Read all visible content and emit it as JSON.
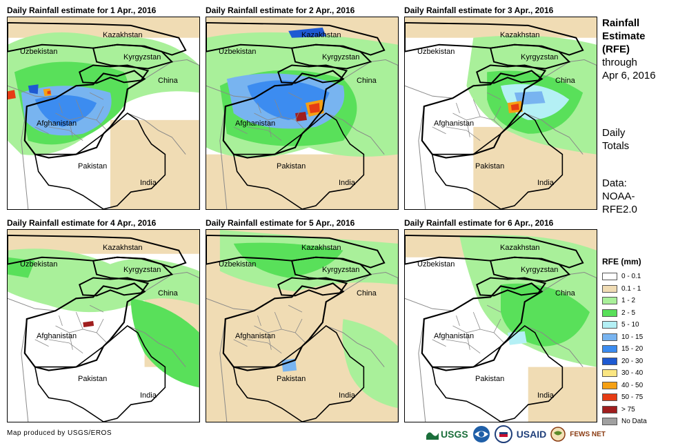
{
  "panels": [
    {
      "title": "Daily Rainfall estimate for 1 Apr., 2016",
      "rain": "day1"
    },
    {
      "title": "Daily Rainfall estimate for 2 Apr., 2016",
      "rain": "day2"
    },
    {
      "title": "Daily Rainfall estimate for 3 Apr., 2016",
      "rain": "day3"
    },
    {
      "title": "Daily Rainfall estimate for 4 Apr., 2016",
      "rain": "day4"
    },
    {
      "title": "Daily Rainfall estimate for 5 Apr., 2016",
      "rain": "day5"
    },
    {
      "title": "Daily Rainfall estimate for 6 Apr., 2016",
      "rain": "day6"
    }
  ],
  "map_labels": {
    "kazakhstan": "Kazakhstan",
    "kyrgyzstan": "Kyrgyzstan",
    "uzbekistan": "Uzbekistan",
    "china": "China",
    "afghanistan": "Afghanistan",
    "pakistan": "Pakistan",
    "india": "India"
  },
  "side": {
    "title_lines": [
      "Rainfall",
      "Estimate",
      "(RFE)"
    ],
    "through": "through",
    "date": "Apr 6, 2016",
    "totals_lines": [
      "Daily",
      "Totals"
    ],
    "data_lines": [
      "Data:",
      "NOAA-",
      "RFE2.0"
    ]
  },
  "legend": {
    "title": "RFE (mm)",
    "items": [
      {
        "label": "0 - 0.1",
        "color": "#ffffff"
      },
      {
        "label": "0.1 - 1",
        "color": "#f0dcb4"
      },
      {
        "label": "1 - 2",
        "color": "#a9f09a"
      },
      {
        "label": "2 - 5",
        "color": "#59e05a"
      },
      {
        "label": "5 - 10",
        "color": "#b4f0f5"
      },
      {
        "label": "10 - 15",
        "color": "#78b4f0"
      },
      {
        "label": "15 - 20",
        "color": "#3c8cf0"
      },
      {
        "label": "20 - 30",
        "color": "#1e5ad2"
      },
      {
        "label": "30 - 40",
        "color": "#fae682"
      },
      {
        "label": "40 - 50",
        "color": "#f5a014"
      },
      {
        "label": "50 - 75",
        "color": "#e63c14"
      },
      {
        "label": "> 75",
        "color": "#a01e1e"
      },
      {
        "label": "No Data",
        "color": "#a0a0a0"
      }
    ]
  },
  "footer": "Map produced by USGS/EROS",
  "logos": {
    "usgs": "USGS",
    "usaid": "USAID",
    "fews": "FEWS NET"
  }
}
